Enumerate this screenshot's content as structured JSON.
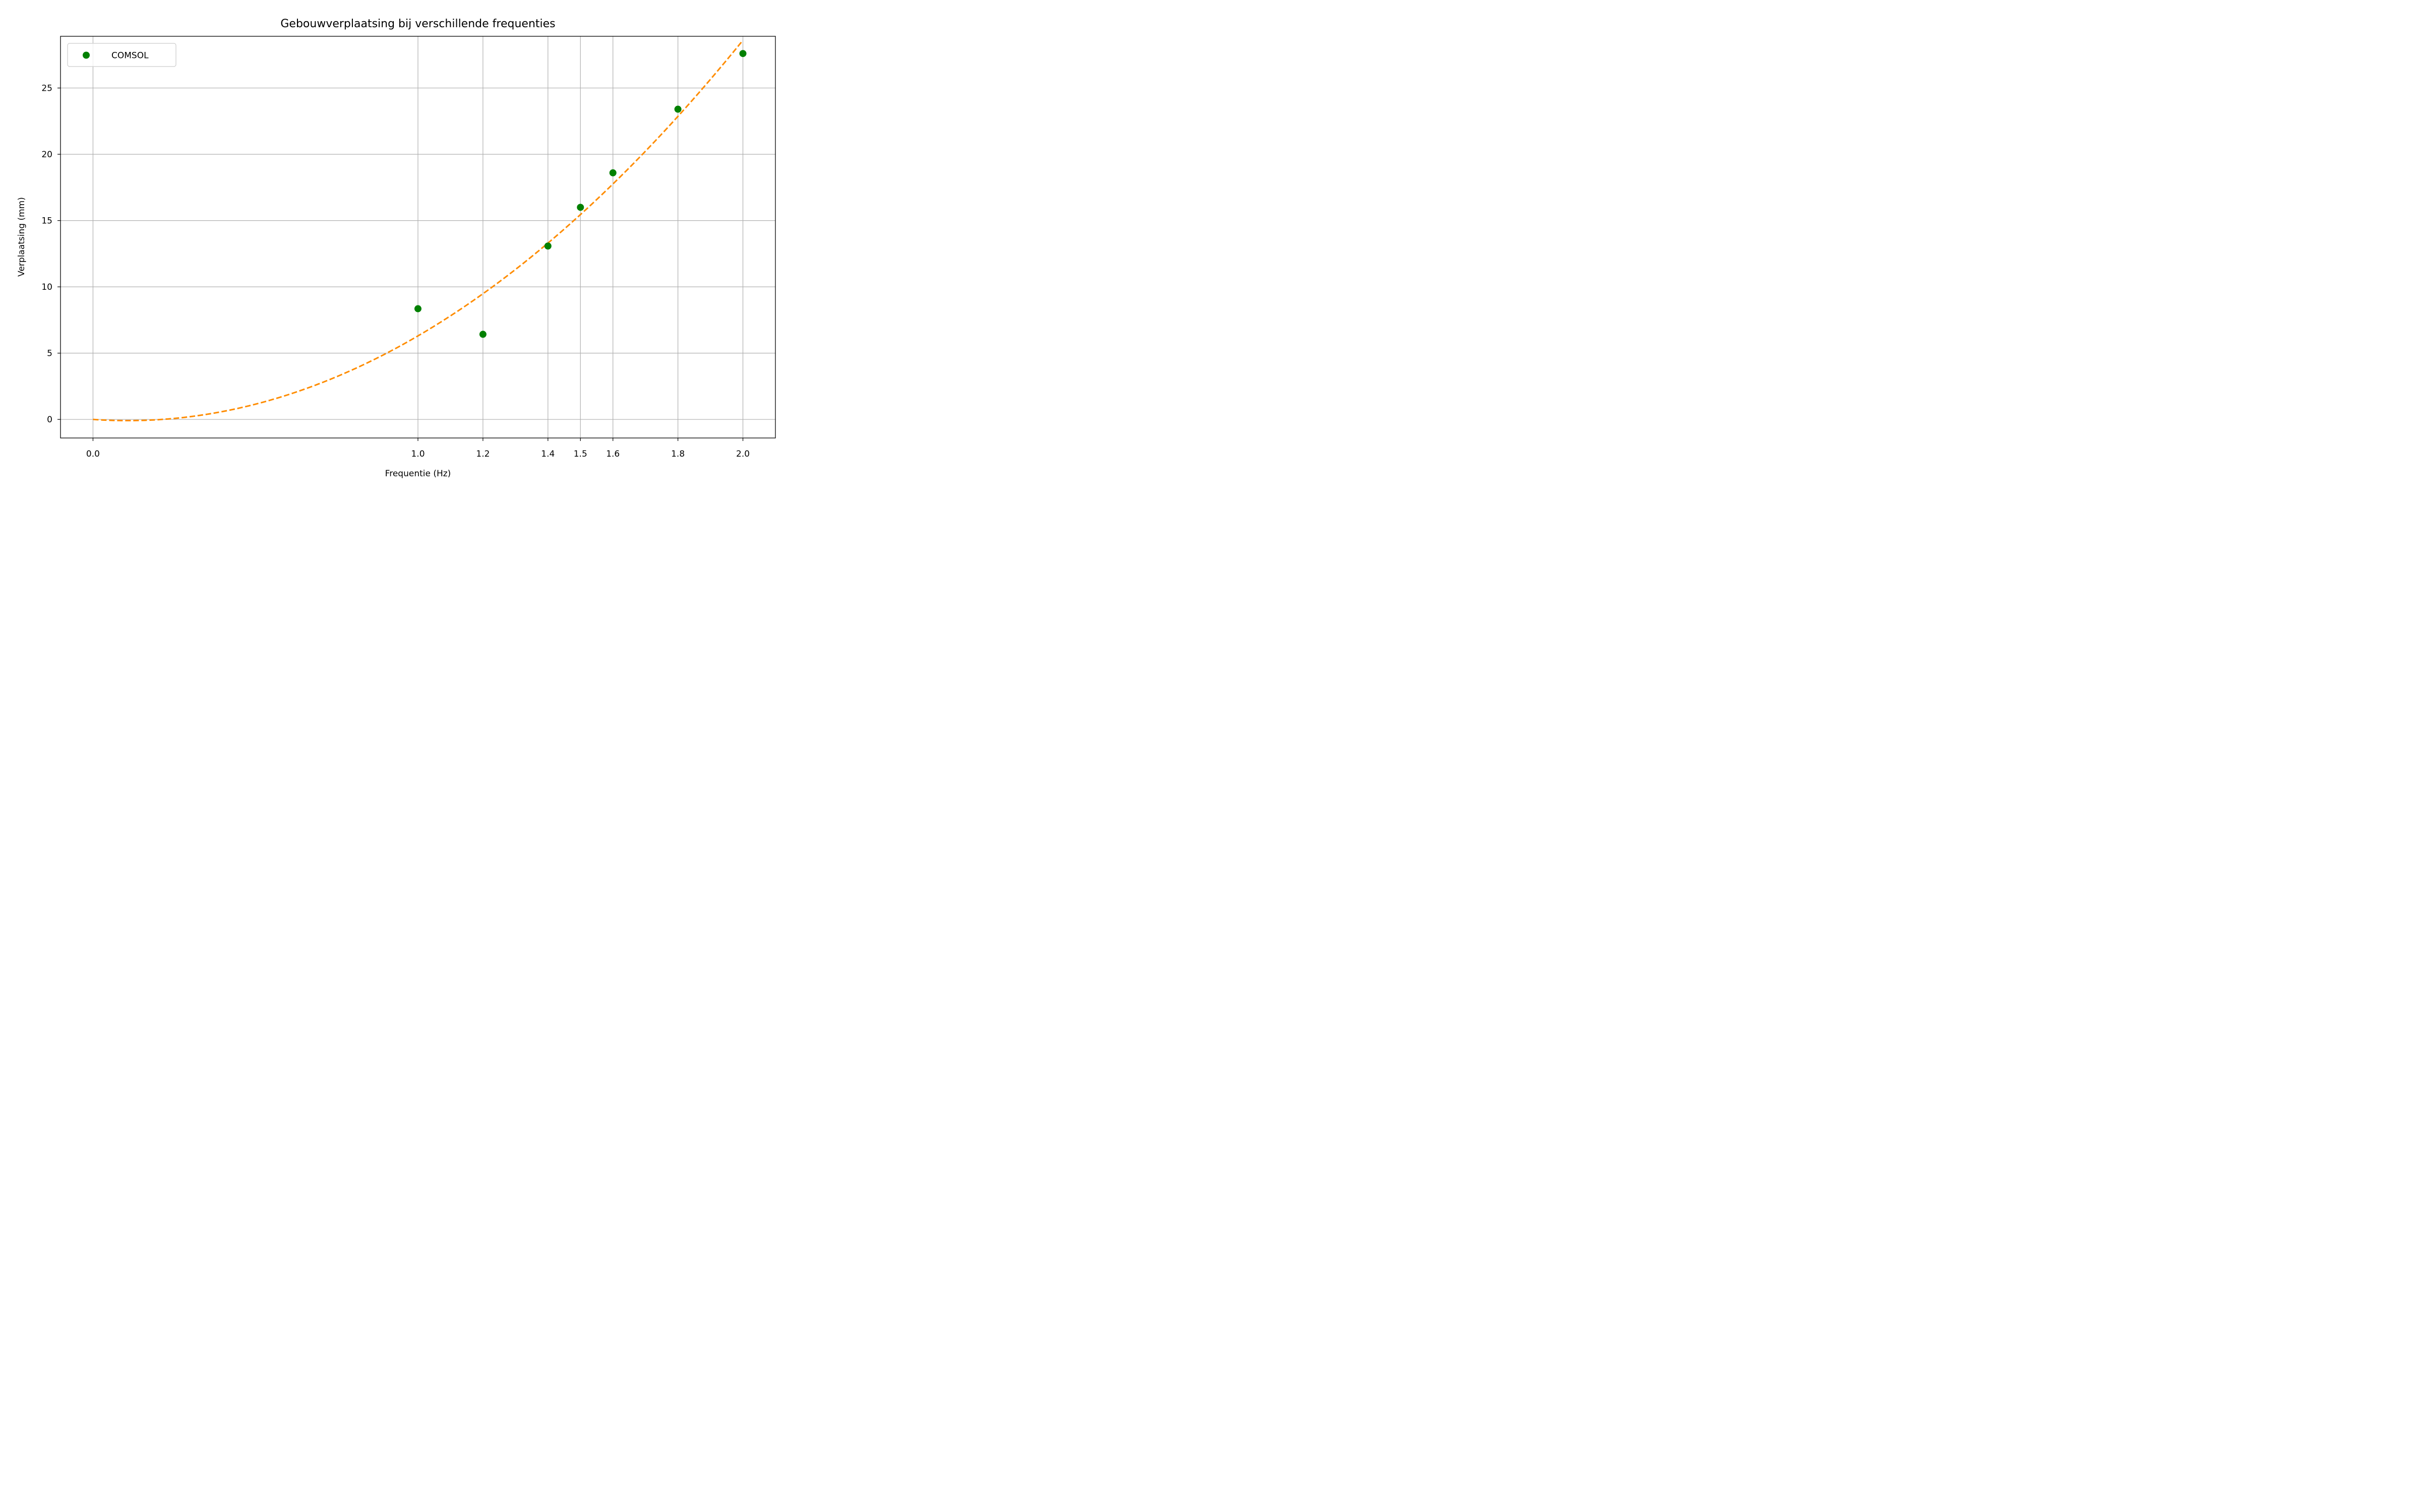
{
  "chart_data": {
    "type": "scatter",
    "title": "Gebouwverplaatsing bij verschillende frequenties",
    "xlabel": "Frequentie (Hz)",
    "ylabel": "Verplaatsing (mm)",
    "xlim": [
      -0.1,
      2.1
    ],
    "ylim": [
      -1.4,
      28.9
    ],
    "xticks": [
      0.0,
      1.0,
      1.2,
      1.4,
      1.5,
      1.6,
      1.8,
      2.0
    ],
    "xtick_labels": [
      "0.0",
      "1.0",
      "1.2",
      "1.4",
      "1.5",
      "1.6",
      "1.8",
      "2.0"
    ],
    "yticks": [
      0,
      5,
      10,
      15,
      20,
      25
    ],
    "ytick_labels": [
      "0",
      "5",
      "10",
      "15",
      "20",
      "25"
    ],
    "grid": true,
    "legend_position": "top-left",
    "series": [
      {
        "name": "COMSOL",
        "kind": "scatter",
        "color": "#008000",
        "x": [
          1.0,
          1.2,
          1.4,
          1.5,
          1.6,
          1.8,
          2.0
        ],
        "y": [
          8.35,
          6.42,
          13.08,
          16.0,
          18.6,
          23.4,
          27.6
        ]
      },
      {
        "kind": "line",
        "style": "dashed",
        "color": "#ff8c00",
        "fit": {
          "a": 8.0,
          "b": -1.7,
          "c": 0.0,
          "x_range": [
            0.0,
            2.0
          ]
        }
      }
    ]
  }
}
